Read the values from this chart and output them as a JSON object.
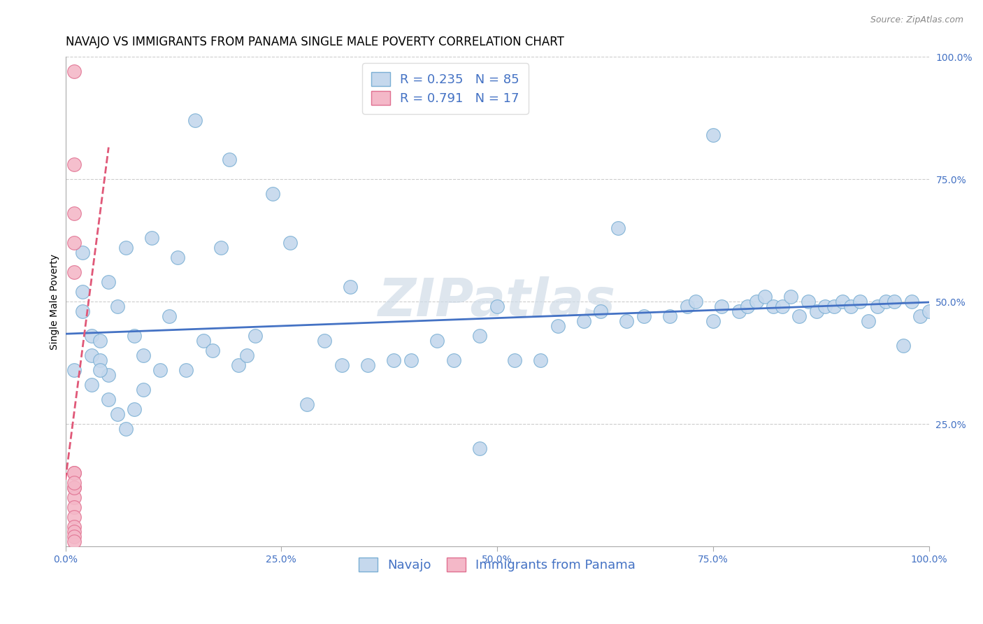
{
  "title": "NAVAJO VS IMMIGRANTS FROM PANAMA SINGLE MALE POVERTY CORRELATION CHART",
  "source": "Source: ZipAtlas.com",
  "ylabel": "Single Male Poverty",
  "watermark": "ZIPatlas",
  "navajo_R": 0.235,
  "navajo_N": 85,
  "panama_R": 0.791,
  "panama_N": 17,
  "navajo_color": "#c5d8ed",
  "navajo_edge_color": "#7aafd4",
  "navajo_line_color": "#4472c4",
  "panama_color": "#f4b8c8",
  "panama_edge_color": "#e07090",
  "panama_line_color": "#e05878",
  "background_color": "#ffffff",
  "grid_color": "#cccccc",
  "xlim": [
    0.0,
    1.0
  ],
  "ylim": [
    0.0,
    1.0
  ],
  "xtick_labels": [
    "0.0%",
    "25.0%",
    "50.0%",
    "75.0%",
    "100.0%"
  ],
  "xtick_positions": [
    0.0,
    0.25,
    0.5,
    0.75,
    1.0
  ],
  "ytick_labels": [
    "25.0%",
    "50.0%",
    "75.0%",
    "100.0%"
  ],
  "ytick_positions": [
    0.25,
    0.5,
    0.75,
    1.0
  ],
  "navajo_x": [
    0.01,
    0.02,
    0.02,
    0.02,
    0.03,
    0.03,
    0.04,
    0.04,
    0.05,
    0.05,
    0.06,
    0.07,
    0.08,
    0.09,
    0.1,
    0.11,
    0.12,
    0.14,
    0.16,
    0.18,
    0.2,
    0.22,
    0.26,
    0.28,
    0.3,
    0.32,
    0.35,
    0.38,
    0.4,
    0.43,
    0.45,
    0.48,
    0.5,
    0.52,
    0.55,
    0.57,
    0.6,
    0.62,
    0.65,
    0.67,
    0.7,
    0.72,
    0.73,
    0.75,
    0.76,
    0.78,
    0.79,
    0.8,
    0.81,
    0.82,
    0.83,
    0.84,
    0.85,
    0.86,
    0.87,
    0.88,
    0.89,
    0.9,
    0.91,
    0.92,
    0.93,
    0.94,
    0.95,
    0.96,
    0.97,
    0.98,
    0.99,
    1.0,
    0.03,
    0.04,
    0.05,
    0.06,
    0.07,
    0.08,
    0.09,
    0.13,
    0.17,
    0.21,
    0.15,
    0.19,
    0.24,
    0.33,
    0.48,
    0.64,
    0.75
  ],
  "navajo_y": [
    0.36,
    0.6,
    0.52,
    0.48,
    0.43,
    0.39,
    0.42,
    0.38,
    0.54,
    0.35,
    0.49,
    0.61,
    0.43,
    0.39,
    0.63,
    0.36,
    0.47,
    0.36,
    0.42,
    0.61,
    0.37,
    0.43,
    0.62,
    0.29,
    0.42,
    0.37,
    0.37,
    0.38,
    0.38,
    0.42,
    0.38,
    0.43,
    0.49,
    0.38,
    0.38,
    0.45,
    0.46,
    0.48,
    0.46,
    0.47,
    0.47,
    0.49,
    0.5,
    0.46,
    0.49,
    0.48,
    0.49,
    0.5,
    0.51,
    0.49,
    0.49,
    0.51,
    0.47,
    0.5,
    0.48,
    0.49,
    0.49,
    0.5,
    0.49,
    0.5,
    0.46,
    0.49,
    0.5,
    0.5,
    0.41,
    0.5,
    0.47,
    0.48,
    0.33,
    0.36,
    0.3,
    0.27,
    0.24,
    0.28,
    0.32,
    0.59,
    0.4,
    0.39,
    0.87,
    0.79,
    0.72,
    0.53,
    0.2,
    0.65,
    0.84
  ],
  "panama_x": [
    0.01,
    0.01,
    0.01,
    0.01,
    0.01,
    0.01,
    0.01,
    0.01,
    0.01,
    0.01,
    0.01,
    0.01,
    0.01,
    0.01,
    0.01,
    0.01,
    0.01
  ],
  "panama_y": [
    0.97,
    0.78,
    0.68,
    0.62,
    0.56,
    0.15,
    0.12,
    0.1,
    0.08,
    0.06,
    0.04,
    0.03,
    0.02,
    0.01,
    0.12,
    0.15,
    0.13
  ],
  "navajo_line_y0": 0.365,
  "navajo_line_y1": 0.49,
  "title_fontsize": 12,
  "axis_label_fontsize": 10,
  "tick_fontsize": 10,
  "legend_fontsize": 13
}
